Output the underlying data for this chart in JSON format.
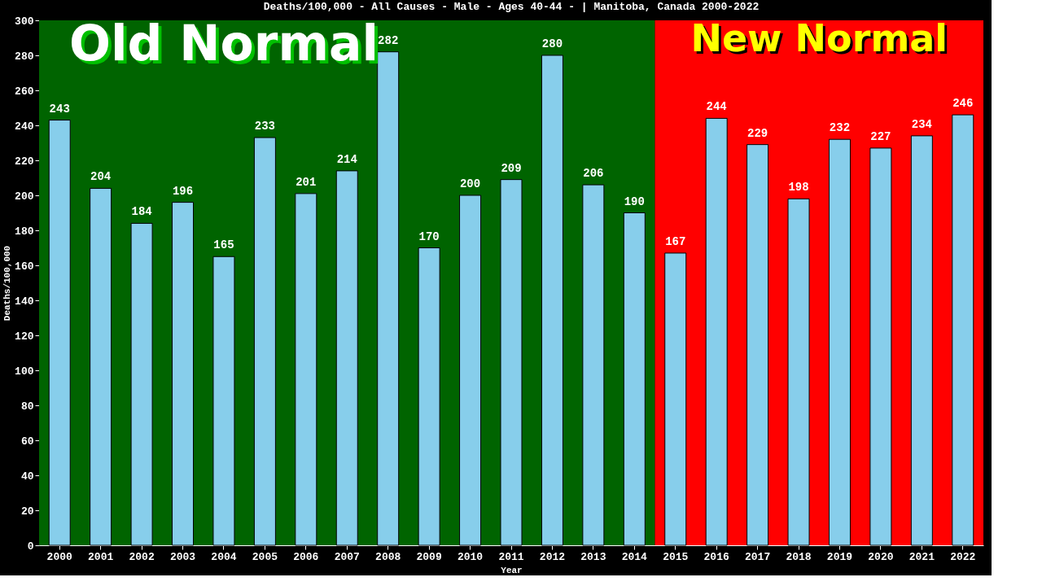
{
  "chart_data": {
    "type": "bar",
    "title": "Deaths/100,000 - All Causes - Male - Ages 40-44 -  | Manitoba, Canada 2000-2022",
    "xlabel": "Year",
    "ylabel": "Deaths/100,000",
    "categories": [
      "2000",
      "2001",
      "2002",
      "2003",
      "2004",
      "2005",
      "2006",
      "2007",
      "2008",
      "2009",
      "2010",
      "2011",
      "2012",
      "2013",
      "2014",
      "2015",
      "2016",
      "2017",
      "2018",
      "2019",
      "2020",
      "2021",
      "2022"
    ],
    "values": [
      243,
      204,
      184,
      196,
      165,
      233,
      201,
      214,
      282,
      170,
      200,
      209,
      280,
      206,
      190,
      167,
      244,
      229,
      198,
      232,
      227,
      234,
      246
    ],
    "color": "#87ceeb",
    "ylim": [
      0,
      300
    ],
    "yticks": [
      0,
      20,
      40,
      60,
      80,
      100,
      120,
      140,
      160,
      180,
      200,
      220,
      240,
      260,
      280,
      300
    ],
    "data_labels": true,
    "grid": false,
    "bands": [
      {
        "axis": "x",
        "from": "2000",
        "to": "2014",
        "label": "Old Normal",
        "color": "#006400"
      },
      {
        "axis": "x",
        "from": "2015",
        "to": "2022",
        "label": "New Normal",
        "color": "#ff0000"
      }
    ]
  }
}
